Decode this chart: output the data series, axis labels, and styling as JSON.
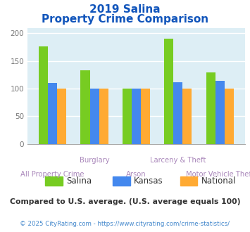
{
  "title_line1": "2019 Salina",
  "title_line2": "Property Crime Comparison",
  "categories": [
    "All Property Crime",
    "Burglary",
    "Arson",
    "Larceny & Theft",
    "Motor Vehicle Theft"
  ],
  "series": {
    "Salina": [
      177,
      133,
      100,
      191,
      129
    ],
    "Kansas": [
      110,
      100,
      100,
      112,
      114
    ],
    "National": [
      100,
      100,
      100,
      100,
      100
    ]
  },
  "colors": {
    "Salina": "#77cc22",
    "Kansas": "#4488ee",
    "National": "#ffaa33"
  },
  "ylim": [
    0,
    210
  ],
  "yticks": [
    0,
    50,
    100,
    150,
    200
  ],
  "top_labels": [
    "Burglary",
    "Larceny & Theft"
  ],
  "bottom_labels": [
    "All Property Crime",
    "Arson",
    "Motor Vehicle Theft"
  ],
  "background_color": "#ddeef5",
  "title_color": "#1155bb",
  "xlabel_color": "#aa88bb",
  "ytick_color": "#777777",
  "footnote": "Compared to U.S. average. (U.S. average equals 100)",
  "footnote_color": "#333333",
  "copyright": "© 2025 CityRating.com - https://www.cityrating.com/crime-statistics/",
  "copyright_color": "#4488cc"
}
